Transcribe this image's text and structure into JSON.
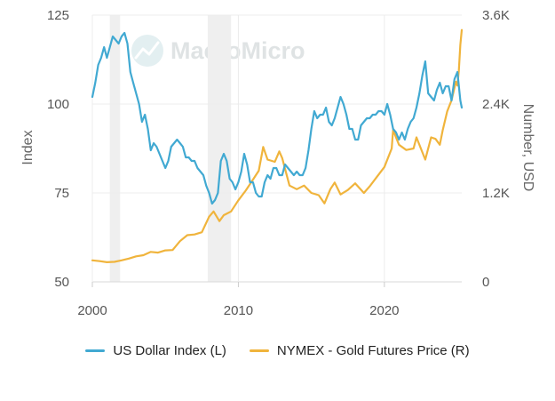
{
  "chart_data": {
    "type": "line",
    "title": "",
    "watermark": "MacroMicro",
    "ylabel_left": "Index",
    "ylabel_right": "Number, USD",
    "x_ticks": [
      "2000",
      "2010",
      "2020"
    ],
    "left_ticks": [
      "125",
      "100",
      "75",
      "50"
    ],
    "right_ticks": [
      "3.6K",
      "2.4K",
      "1.2K",
      "0"
    ],
    "xlim": [
      2000,
      2025.3
    ],
    "ylim_left": [
      50,
      125
    ],
    "ylim_right": [
      0,
      3600
    ],
    "grid": true,
    "legend_position": "bottom",
    "recession_shading": [
      [
        2001.2,
        2001.9
      ],
      [
        2007.9,
        2009.5
      ]
    ],
    "series": [
      {
        "name": "US Dollar Index (L)",
        "axis": "left",
        "color": "#41a9d2",
        "points": [
          [
            2000.0,
            102
          ],
          [
            2000.2,
            106
          ],
          [
            2000.4,
            111
          ],
          [
            2000.6,
            113
          ],
          [
            2000.8,
            116
          ],
          [
            2001.0,
            113
          ],
          [
            2001.2,
            116
          ],
          [
            2001.4,
            119
          ],
          [
            2001.6,
            118
          ],
          [
            2001.8,
            117
          ],
          [
            2002.0,
            119
          ],
          [
            2002.2,
            120
          ],
          [
            2002.4,
            117
          ],
          [
            2002.6,
            109
          ],
          [
            2002.8,
            106
          ],
          [
            2003.0,
            103
          ],
          [
            2003.2,
            100
          ],
          [
            2003.4,
            95
          ],
          [
            2003.6,
            97
          ],
          [
            2003.8,
            93
          ],
          [
            2004.0,
            87
          ],
          [
            2004.2,
            89
          ],
          [
            2004.4,
            88
          ],
          [
            2004.6,
            86
          ],
          [
            2004.8,
            84
          ],
          [
            2005.0,
            82
          ],
          [
            2005.2,
            84
          ],
          [
            2005.4,
            88
          ],
          [
            2005.6,
            89
          ],
          [
            2005.8,
            90
          ],
          [
            2006.0,
            89
          ],
          [
            2006.2,
            88
          ],
          [
            2006.4,
            85
          ],
          [
            2006.6,
            85
          ],
          [
            2006.8,
            84
          ],
          [
            2007.0,
            84
          ],
          [
            2007.2,
            82
          ],
          [
            2007.4,
            81
          ],
          [
            2007.6,
            80
          ],
          [
            2007.8,
            77
          ],
          [
            2008.0,
            75
          ],
          [
            2008.2,
            72
          ],
          [
            2008.4,
            73
          ],
          [
            2008.6,
            75
          ],
          [
            2008.8,
            84
          ],
          [
            2009.0,
            86
          ],
          [
            2009.2,
            84
          ],
          [
            2009.4,
            79
          ],
          [
            2009.6,
            78
          ],
          [
            2009.8,
            76
          ],
          [
            2010.0,
            78
          ],
          [
            2010.2,
            81
          ],
          [
            2010.4,
            86
          ],
          [
            2010.6,
            83
          ],
          [
            2010.8,
            78
          ],
          [
            2011.0,
            78
          ],
          [
            2011.2,
            75
          ],
          [
            2011.4,
            74
          ],
          [
            2011.6,
            74
          ],
          [
            2011.8,
            78
          ],
          [
            2012.0,
            80
          ],
          [
            2012.2,
            79
          ],
          [
            2012.4,
            82
          ],
          [
            2012.6,
            82
          ],
          [
            2012.8,
            80
          ],
          [
            2013.0,
            80
          ],
          [
            2013.2,
            83
          ],
          [
            2013.4,
            82
          ],
          [
            2013.6,
            81
          ],
          [
            2013.8,
            80
          ],
          [
            2014.0,
            81
          ],
          [
            2014.2,
            80
          ],
          [
            2014.4,
            80
          ],
          [
            2014.6,
            82
          ],
          [
            2014.8,
            87
          ],
          [
            2015.0,
            93
          ],
          [
            2015.2,
            98
          ],
          [
            2015.4,
            96
          ],
          [
            2015.6,
            97
          ],
          [
            2015.8,
            97
          ],
          [
            2016.0,
            99
          ],
          [
            2016.2,
            95
          ],
          [
            2016.4,
            94
          ],
          [
            2016.6,
            96
          ],
          [
            2016.8,
            99
          ],
          [
            2017.0,
            102
          ],
          [
            2017.2,
            100
          ],
          [
            2017.4,
            97
          ],
          [
            2017.6,
            93
          ],
          [
            2017.8,
            93
          ],
          [
            2018.0,
            90
          ],
          [
            2018.2,
            90
          ],
          [
            2018.4,
            94
          ],
          [
            2018.6,
            95
          ],
          [
            2018.8,
            96
          ],
          [
            2019.0,
            96
          ],
          [
            2019.2,
            97
          ],
          [
            2019.4,
            97
          ],
          [
            2019.6,
            98
          ],
          [
            2019.8,
            98
          ],
          [
            2020.0,
            97
          ],
          [
            2020.2,
            100
          ],
          [
            2020.4,
            97
          ],
          [
            2020.6,
            93
          ],
          [
            2020.8,
            92
          ],
          [
            2021.0,
            90
          ],
          [
            2021.2,
            92
          ],
          [
            2021.4,
            90
          ],
          [
            2021.6,
            93
          ],
          [
            2021.8,
            95
          ],
          [
            2022.0,
            96
          ],
          [
            2022.2,
            99
          ],
          [
            2022.4,
            103
          ],
          [
            2022.6,
            108
          ],
          [
            2022.8,
            112
          ],
          [
            2023.0,
            103
          ],
          [
            2023.2,
            102
          ],
          [
            2023.4,
            101
          ],
          [
            2023.6,
            104
          ],
          [
            2023.8,
            106
          ],
          [
            2024.0,
            103
          ],
          [
            2024.2,
            105
          ],
          [
            2024.4,
            105
          ],
          [
            2024.6,
            101
          ],
          [
            2024.8,
            107
          ],
          [
            2025.0,
            109
          ],
          [
            2025.2,
            101
          ],
          [
            2025.3,
            99
          ]
        ]
      },
      {
        "name": "NYMEX - Gold Futures Price (R)",
        "axis": "right",
        "color": "#f0b43c",
        "points": [
          [
            2000.0,
            290
          ],
          [
            2000.5,
            280
          ],
          [
            2001.0,
            265
          ],
          [
            2001.5,
            270
          ],
          [
            2002.0,
            290
          ],
          [
            2002.5,
            315
          ],
          [
            2003.0,
            345
          ],
          [
            2003.5,
            360
          ],
          [
            2004.0,
            405
          ],
          [
            2004.5,
            395
          ],
          [
            2005.0,
            425
          ],
          [
            2005.5,
            430
          ],
          [
            2006.0,
            550
          ],
          [
            2006.5,
            630
          ],
          [
            2007.0,
            640
          ],
          [
            2007.5,
            670
          ],
          [
            2008.0,
            880
          ],
          [
            2008.3,
            950
          ],
          [
            2008.7,
            820
          ],
          [
            2009.0,
            900
          ],
          [
            2009.5,
            950
          ],
          [
            2010.0,
            1100
          ],
          [
            2010.5,
            1230
          ],
          [
            2011.0,
            1380
          ],
          [
            2011.4,
            1500
          ],
          [
            2011.7,
            1820
          ],
          [
            2012.0,
            1650
          ],
          [
            2012.5,
            1620
          ],
          [
            2012.8,
            1760
          ],
          [
            2013.0,
            1670
          ],
          [
            2013.5,
            1300
          ],
          [
            2014.0,
            1250
          ],
          [
            2014.5,
            1300
          ],
          [
            2015.0,
            1200
          ],
          [
            2015.5,
            1170
          ],
          [
            2015.9,
            1060
          ],
          [
            2016.3,
            1250
          ],
          [
            2016.6,
            1340
          ],
          [
            2017.0,
            1180
          ],
          [
            2017.5,
            1240
          ],
          [
            2018.0,
            1330
          ],
          [
            2018.6,
            1200
          ],
          [
            2019.0,
            1290
          ],
          [
            2019.5,
            1420
          ],
          [
            2020.0,
            1550
          ],
          [
            2020.5,
            1800
          ],
          [
            2020.6,
            2050
          ],
          [
            2021.0,
            1850
          ],
          [
            2021.5,
            1780
          ],
          [
            2022.0,
            1800
          ],
          [
            2022.2,
            1950
          ],
          [
            2022.8,
            1650
          ],
          [
            2023.2,
            1950
          ],
          [
            2023.5,
            1930
          ],
          [
            2023.8,
            1850
          ],
          [
            2024.0,
            2050
          ],
          [
            2024.3,
            2300
          ],
          [
            2024.6,
            2450
          ],
          [
            2024.9,
            2700
          ],
          [
            2025.0,
            2650
          ],
          [
            2025.1,
            2850
          ],
          [
            2025.2,
            3200
          ],
          [
            2025.3,
            3400
          ]
        ]
      }
    ]
  }
}
